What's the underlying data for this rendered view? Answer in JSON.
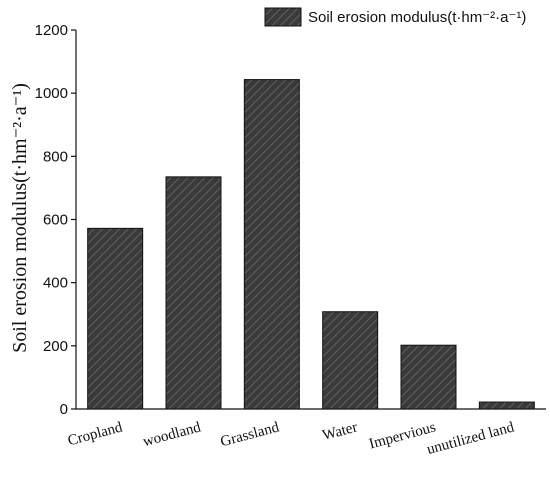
{
  "chart_data": {
    "type": "bar",
    "categories": [
      "Cropland",
      "woodland",
      "Grassland",
      "Water",
      "Impervious",
      "unutilized land"
    ],
    "series": [
      {
        "name": "Soil erosion modulus(t·hm⁻²·a⁻¹)",
        "values": [
          572,
          735,
          1043,
          308,
          202,
          22
        ]
      }
    ],
    "ylabel": "Soil erosion modulus(t·hm⁻²·a⁻¹)",
    "xlabel": "",
    "title": "",
    "ylim": [
      0,
      1200
    ],
    "yticks": [
      0,
      200,
      400,
      600,
      800,
      1000,
      1200
    ],
    "grid": false,
    "legend_position": "top-right",
    "bar_color": "#3a3a3a",
    "pattern": "diagonal-hatch"
  }
}
